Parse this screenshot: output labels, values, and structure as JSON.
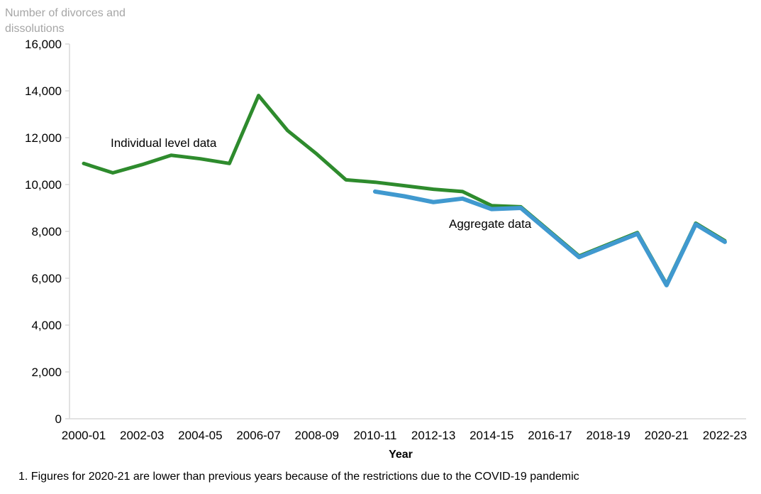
{
  "chart_data": {
    "type": "line",
    "y_axis_title_lines": [
      "Number of divorces and",
      "dissolutions"
    ],
    "xlabel": "Year",
    "ylim": [
      0,
      16000
    ],
    "y_tick_step": 2000,
    "y_tick_labels": [
      "0",
      "2,000",
      "4,000",
      "6,000",
      "8,000",
      "10,000",
      "12,000",
      "14,000",
      "16,000"
    ],
    "x": [
      "2000-01",
      "2001-02",
      "2002-03",
      "2003-04",
      "2004-05",
      "2005-06",
      "2006-07",
      "2007-08",
      "2008-09",
      "2009-10",
      "2010-11",
      "2011-12",
      "2012-13",
      "2013-14",
      "2014-15",
      "2015-16",
      "2016-17",
      "2017-18",
      "2018-19",
      "2019-20",
      "2020-21",
      "2021-22",
      "2022-23"
    ],
    "x_tick_labels_shown": [
      "2000-01",
      "2002-03",
      "2004-05",
      "2006-07",
      "2008-09",
      "2010-11",
      "2012-13",
      "2014-15",
      "2016-17",
      "2018-19",
      "2020-21",
      "2022-23"
    ],
    "grid": "off",
    "legend": "none",
    "series": [
      {
        "name": "Individual level data",
        "color": "#2e8b2d",
        "stroke_width": 5,
        "values": [
          10900,
          10500,
          10850,
          11250,
          11100,
          10900,
          13800,
          12300,
          11300,
          10200,
          10100,
          9950,
          9800,
          9700,
          9100,
          9050,
          8000,
          6950,
          7450,
          7950,
          5750,
          8350,
          7600
        ]
      },
      {
        "name": "Aggregate data",
        "color": "#4099cf",
        "stroke_width": 6,
        "values": [
          null,
          null,
          null,
          null,
          null,
          null,
          null,
          null,
          null,
          null,
          9700,
          9500,
          9250,
          9400,
          8950,
          9000,
          7950,
          6900,
          7400,
          7900,
          5700,
          8300,
          7550
        ]
      }
    ],
    "annotations": [
      {
        "text": "Individual level data"
      },
      {
        "text": "Aggregate data"
      }
    ]
  },
  "footnote": "1. Figures for 2020-21 are lower than previous years because of the restrictions due to the COVID-19 pandemic",
  "colors": {
    "axis_line": "#d9d9d9",
    "axis_title_text": "#a6a6a6",
    "tick_text": "#000000",
    "series_individual": "#2e8b2d",
    "series_aggregate": "#4099cf"
  }
}
